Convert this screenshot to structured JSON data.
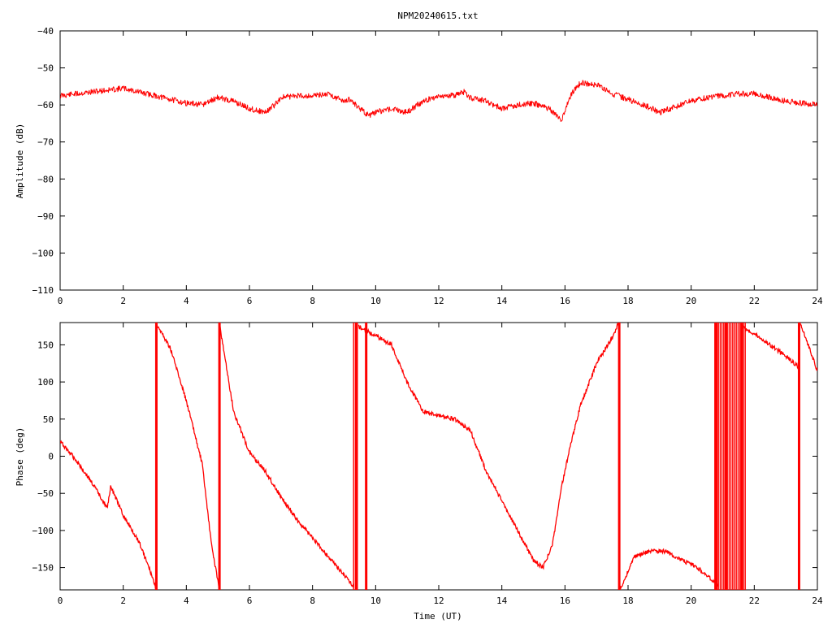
{
  "title": "NPM20240615.txt",
  "colors": {
    "trace": "#ff0000",
    "axis": "#000000",
    "background": "#ffffff"
  },
  "chart_data": [
    {
      "type": "line",
      "ylabel": "Amplitude (dB)",
      "xlabel": "",
      "xlim": [
        0,
        24
      ],
      "ylim": [
        -110,
        -40
      ],
      "xticks": [
        0,
        2,
        4,
        6,
        8,
        10,
        12,
        14,
        16,
        18,
        20,
        22,
        24
      ],
      "yticks": [
        -110,
        -100,
        -90,
        -80,
        -70,
        -60,
        -50,
        -40
      ],
      "grid": false,
      "series": [
        {
          "x": [
            0,
            0.5,
            1,
            1.5,
            2,
            2.5,
            3,
            3.5,
            4,
            4.5,
            5,
            5.5,
            6,
            6.5,
            6.8,
            7,
            7.5,
            8,
            8.5,
            9,
            9.2,
            9.5,
            9.8,
            10,
            10.5,
            11,
            11.5,
            12,
            12.5,
            12.8,
            13,
            13.5,
            14,
            14.5,
            15,
            15.5,
            15.9,
            16.2,
            16.5,
            17,
            17.5,
            18,
            18.5,
            19,
            19.5,
            20,
            20.5,
            21,
            21.5,
            22,
            22.5,
            23,
            23.5,
            24
          ],
          "y": [
            -57.5,
            -57,
            -56.5,
            -56,
            -55.5,
            -56.5,
            -57.5,
            -58.5,
            -59.5,
            -60,
            -58,
            -59,
            -61,
            -62,
            -60,
            -58,
            -57.5,
            -57.5,
            -57,
            -59,
            -58.5,
            -61,
            -63,
            -62,
            -61,
            -62,
            -59,
            -57.5,
            -57.5,
            -56.5,
            -58,
            -59,
            -61,
            -60,
            -59.5,
            -61,
            -64,
            -57,
            -54,
            -54.5,
            -57,
            -58.5,
            -60,
            -62,
            -60.5,
            -59,
            -58,
            -57.5,
            -57,
            -57,
            -58,
            -59,
            -59.5,
            -60
          ]
        }
      ]
    },
    {
      "type": "line",
      "ylabel": "Phase (deg)",
      "xlabel": "Time (UT)",
      "xlim": [
        0,
        24
      ],
      "ylim": [
        -180,
        180
      ],
      "xticks": [
        0,
        2,
        4,
        6,
        8,
        10,
        12,
        14,
        16,
        18,
        20,
        22,
        24
      ],
      "yticks": [
        -150,
        -100,
        -50,
        0,
        50,
        100,
        150
      ],
      "grid": false,
      "series": [
        {
          "segments": [
            {
              "x": [
                0,
                0.5,
                1,
                1.5,
                1.6,
                2,
                2.5,
                2.9,
                3.05
              ],
              "y": [
                20,
                -5,
                -35,
                -70,
                -40,
                -80,
                -115,
                -160,
                -180
              ]
            },
            {
              "x": [
                3.05,
                3.1,
                3.5,
                4,
                4.5,
                4.8,
                5.05
              ],
              "y": [
                180,
                175,
                145,
                75,
                -10,
                -120,
                -180
              ]
            },
            {
              "x": [
                5.05,
                5.1,
                5.5,
                6,
                6.5,
                7,
                7.5,
                8,
                8.5,
                9,
                9.3
              ],
              "y": [
                180,
                165,
                60,
                5,
                -20,
                -55,
                -85,
                -110,
                -135,
                -160,
                -175
              ]
            },
            {
              "x": [
                9.45,
                10,
                10.5,
                11,
                11.5,
                12,
                12.5,
                13,
                13.5,
                14,
                14.5,
                15,
                15.3,
                15.6,
                15.9,
                16.2,
                16.5,
                17,
                17.5,
                17.7
              ],
              "y": [
                175,
                162,
                150,
                100,
                60,
                55,
                50,
                35,
                -20,
                -60,
                -100,
                -140,
                -150,
                -120,
                -40,
                20,
                70,
                125,
                160,
                180
              ]
            },
            {
              "x": [
                17.75,
                17.85,
                18.2,
                18.7,
                19.2,
                19.7,
                20.2,
                20.7,
                20.85
              ],
              "y": [
                -180,
                -170,
                -135,
                -128,
                -128,
                -140,
                -150,
                -168,
                -175
              ]
            },
            {
              "x": [
                21.6,
                22,
                22.5,
                23,
                23.4
              ],
              "y": [
                175,
                165,
                150,
                135,
                120
              ]
            },
            {
              "x": [
                23.45,
                23.5,
                24
              ],
              "y": [
                180,
                175,
                115
              ]
            }
          ],
          "wrap_bands": [
            {
              "x0": 9.3,
              "x1": 9.45
            },
            {
              "x0": 20.75,
              "x1": 21.75
            }
          ],
          "wraps": [
            3.05,
            5.05,
            9.4,
            9.7,
            17.72,
            20.8,
            21.1,
            21.6,
            23.42
          ]
        }
      ]
    }
  ]
}
